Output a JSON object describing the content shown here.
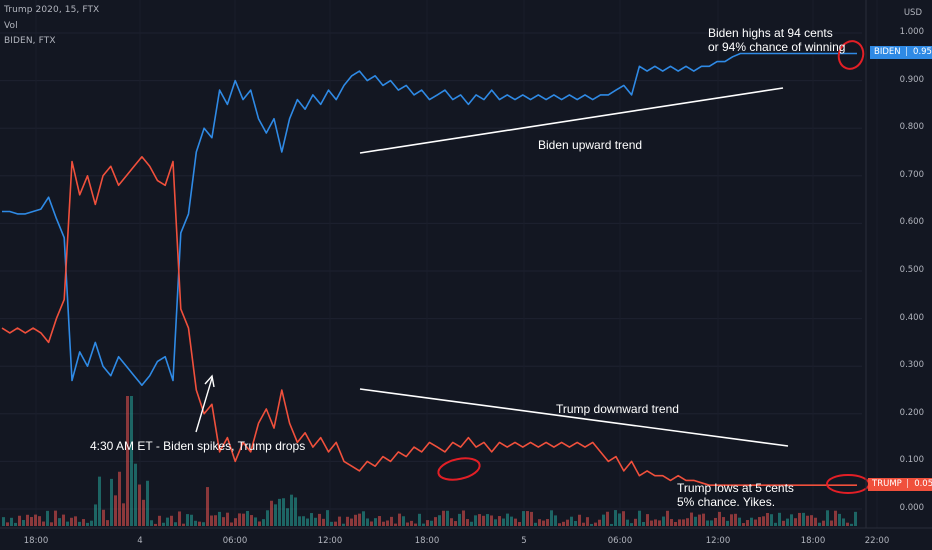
{
  "header": {
    "symbol_line": "Trump 2020, 15, FTX",
    "vol_line": "Vol",
    "compare_line": "BIDEN, FTX",
    "currency": "USD"
  },
  "annotations": {
    "biden_highs_1": "Biden highs at 94 cents",
    "biden_highs_2": "or 94% chance of winning",
    "biden_trend": "Biden upward trend",
    "trump_trend": "Trump downward trend",
    "spike_note": "4:30 AM ET - Biden spikes, Trump drops",
    "trump_lows_1": "Trump lows at 5 cents",
    "trump_lows_2": "5% chance. Yikes."
  },
  "price_tags": {
    "biden_name": "BIDEN",
    "biden_value": "0.957",
    "trump_name": "TRUMP",
    "trump_value": "0.050"
  },
  "colors": {
    "background": "#131722",
    "biden": "#2f8ae5",
    "trump": "#f0503c",
    "vol_up": "#26a69a",
    "vol_down": "#ef5350",
    "trend_line": "#ffffff",
    "circle": "#e31f26"
  },
  "chart_data": {
    "type": "line",
    "y_axis_ticks": [
      "1.000",
      "0.900",
      "0.800",
      "0.700",
      "0.600",
      "0.500",
      "0.400",
      "0.300",
      "0.200",
      "0.100",
      "0.000"
    ],
    "x_axis_ticks": [
      "18:00",
      "4",
      "06:00",
      "12:00",
      "18:00",
      "5",
      "06:00",
      "12:00",
      "18:00",
      "22:00"
    ],
    "x": [
      0,
      0.5,
      1,
      1.5,
      2,
      2.5,
      3,
      3.5,
      4,
      4.5,
      5,
      5.5,
      6,
      6.5,
      7,
      7.5,
      8,
      8.5,
      9,
      9.5,
      10,
      10.5,
      11,
      11.5,
      12,
      12.5,
      13,
      13.5,
      14,
      14.5,
      15,
      15.5,
      16,
      16.5,
      17,
      17.5,
      18,
      18.5,
      19,
      19.5,
      20,
      20.5,
      21,
      21.5,
      22,
      22.5,
      23,
      23.5,
      24,
      24.5,
      25,
      25.5,
      26,
      26.5,
      27,
      27.5,
      28,
      28.5,
      29,
      29.5,
      30,
      30.5,
      31,
      31.5,
      32,
      32.5,
      33,
      33.5,
      34,
      34.5,
      35,
      35.5,
      36,
      36.5,
      37,
      37.5,
      38,
      38.5,
      39,
      39.5,
      40,
      40.5,
      41,
      41.5,
      42,
      42.5,
      43,
      43.5,
      44,
      44.5,
      45,
      45.5,
      46,
      46.5,
      47,
      47.5,
      48,
      48.5,
      49,
      49.5,
      50,
      50.5,
      51,
      51.5,
      52,
      52.5,
      53,
      53.5,
      54,
      54.5,
      55
    ],
    "series": [
      {
        "name": "BIDEN",
        "color": "#2f8ae5",
        "values": [
          0.625,
          0.625,
          0.62,
          0.62,
          0.625,
          0.63,
          0.655,
          0.61,
          0.57,
          0.27,
          0.33,
          0.3,
          0.35,
          0.3,
          0.28,
          0.32,
          0.3,
          0.28,
          0.26,
          0.28,
          0.31,
          0.32,
          0.27,
          0.58,
          0.62,
          0.75,
          0.8,
          0.78,
          0.88,
          0.85,
          0.9,
          0.86,
          0.88,
          0.82,
          0.79,
          0.82,
          0.75,
          0.82,
          0.86,
          0.84,
          0.87,
          0.85,
          0.88,
          0.86,
          0.89,
          0.91,
          0.92,
          0.9,
          0.91,
          0.89,
          0.9,
          0.88,
          0.89,
          0.87,
          0.88,
          0.86,
          0.87,
          0.88,
          0.86,
          0.87,
          0.85,
          0.87,
          0.86,
          0.88,
          0.86,
          0.87,
          0.86,
          0.87,
          0.86,
          0.87,
          0.86,
          0.87,
          0.86,
          0.87,
          0.86,
          0.87,
          0.86,
          0.87,
          0.87,
          0.88,
          0.89,
          0.87,
          0.93,
          0.92,
          0.93,
          0.92,
          0.93,
          0.92,
          0.93,
          0.92,
          0.93,
          0.93,
          0.94,
          0.94,
          0.95,
          0.957,
          0.957,
          0.957,
          0.957,
          0.957,
          0.957,
          0.957,
          0.957,
          0.957,
          0.957,
          0.957,
          0.957,
          0.957,
          0.957,
          0.957,
          0.957
        ],
        "visible_points": 96
      },
      {
        "name": "TRUMP",
        "color": "#f0503c",
        "values": [
          0.38,
          0.37,
          0.38,
          0.37,
          0.38,
          0.37,
          0.35,
          0.4,
          0.44,
          0.73,
          0.66,
          0.7,
          0.64,
          0.7,
          0.72,
          0.68,
          0.7,
          0.72,
          0.74,
          0.72,
          0.69,
          0.68,
          0.73,
          0.42,
          0.38,
          0.25,
          0.2,
          0.22,
          0.12,
          0.15,
          0.1,
          0.14,
          0.12,
          0.18,
          0.21,
          0.17,
          0.25,
          0.18,
          0.14,
          0.16,
          0.13,
          0.15,
          0.12,
          0.14,
          0.1,
          0.09,
          0.08,
          0.1,
          0.09,
          0.11,
          0.1,
          0.12,
          0.11,
          0.13,
          0.12,
          0.14,
          0.13,
          0.12,
          0.14,
          0.13,
          0.15,
          0.13,
          0.14,
          0.12,
          0.14,
          0.13,
          0.14,
          0.13,
          0.14,
          0.13,
          0.14,
          0.13,
          0.14,
          0.13,
          0.14,
          0.13,
          0.14,
          0.12,
          0.1,
          0.11,
          0.08,
          0.1,
          0.07,
          0.08,
          0.07,
          0.07,
          0.06,
          0.07,
          0.06,
          0.06,
          0.055,
          0.05,
          0.05,
          0.05,
          0.05,
          0.05,
          0.05,
          0.05,
          0.05,
          0.05,
          0.05,
          0.05,
          0.05,
          0.05,
          0.05,
          0.05,
          0.05,
          0.05,
          0.05,
          0.05,
          0.05
        ],
        "visible_points": 96
      }
    ],
    "ylim": [
      0,
      1.0
    ],
    "grid": true
  }
}
